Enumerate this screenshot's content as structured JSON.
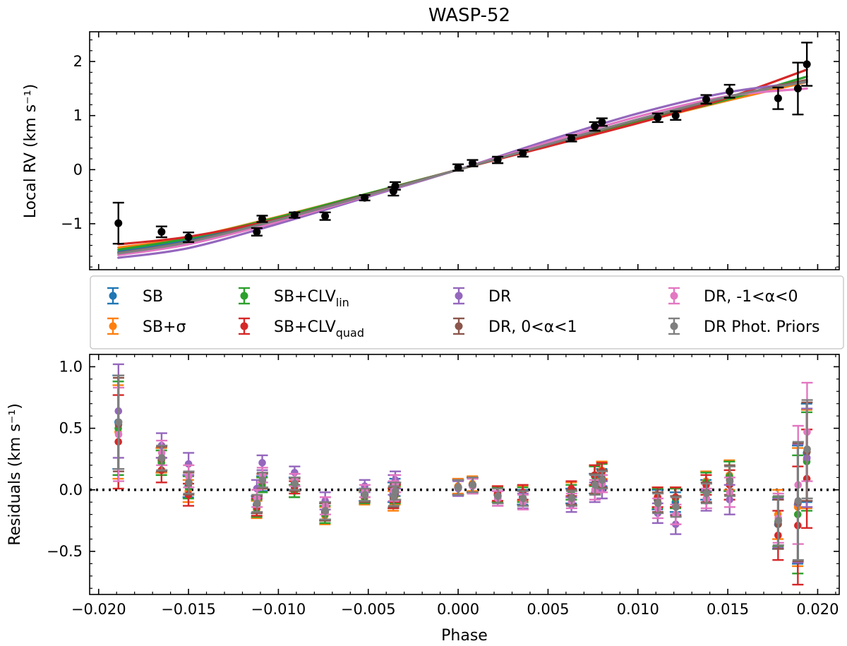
{
  "chart_data": [
    {
      "type": "line",
      "panel": "top",
      "title": "WASP-52",
      "ylabel": "Local RV (km s⁻¹)",
      "xlim": [
        -0.0205,
        0.0212
      ],
      "ylim": [
        -1.85,
        2.55
      ],
      "xticks": [
        -0.02,
        -0.015,
        -0.01,
        -0.005,
        0.0,
        0.005,
        0.01,
        0.015,
        0.02
      ],
      "yticks": [
        -1,
        0,
        1,
        2
      ],
      "ytick_labels": [
        "−1",
        "0",
        "1",
        "2"
      ],
      "observed": {
        "color": "#000000",
        "x": [
          -0.0189,
          -0.0165,
          -0.015,
          -0.0112,
          -0.0109,
          -0.0091,
          -0.0074,
          -0.0052,
          -0.0036,
          -0.0035,
          0.0,
          0.0008,
          0.0022,
          0.0036,
          0.0063,
          0.0076,
          0.008,
          0.0111,
          0.0121,
          0.0138,
          0.0151,
          0.0178,
          0.0189,
          0.0194
        ],
        "y": [
          -0.99,
          -1.15,
          -1.25,
          -1.15,
          -0.91,
          -0.84,
          -0.86,
          -0.52,
          -0.4,
          -0.3,
          0.04,
          0.12,
          0.18,
          0.3,
          0.58,
          0.8,
          0.88,
          0.96,
          1.0,
          1.3,
          1.45,
          1.32,
          1.5,
          1.95
        ],
        "yerr": [
          0.38,
          0.1,
          0.09,
          0.07,
          0.06,
          0.05,
          0.07,
          0.05,
          0.08,
          0.07,
          0.06,
          0.06,
          0.06,
          0.06,
          0.06,
          0.08,
          0.07,
          0.08,
          0.08,
          0.08,
          0.12,
          0.2,
          0.48,
          0.4
        ]
      },
      "series": [
        {
          "color": "#1f77b4",
          "x": [
            -0.0189,
            -0.015,
            -0.01,
            -0.005,
            0.0,
            0.005,
            0.01,
            0.015,
            0.0194
          ],
          "y": [
            -1.52,
            -1.3,
            -0.9,
            -0.45,
            0.0,
            0.45,
            0.9,
            1.32,
            1.65
          ]
        },
        {
          "color": "#ff7f0e",
          "x": [
            -0.0189,
            -0.015,
            -0.01,
            -0.005,
            0.0,
            0.005,
            0.01,
            0.015,
            0.0194
          ],
          "y": [
            -1.44,
            -1.26,
            -0.87,
            -0.44,
            0.0,
            0.44,
            0.87,
            1.28,
            1.62
          ]
        },
        {
          "color": "#2ca02c",
          "x": [
            -0.0189,
            -0.015,
            -0.01,
            -0.005,
            0.0,
            0.005,
            0.01,
            0.015,
            0.0194
          ],
          "y": [
            -1.48,
            -1.27,
            -0.88,
            -0.44,
            0.0,
            0.44,
            0.88,
            1.3,
            1.72
          ]
        },
        {
          "color": "#d62728",
          "x": [
            -0.0189,
            -0.015,
            -0.01,
            -0.005,
            0.0,
            0.005,
            0.01,
            0.015,
            0.0194
          ],
          "y": [
            -1.38,
            -1.24,
            -0.91,
            -0.46,
            0.0,
            0.43,
            0.86,
            1.33,
            1.85
          ]
        },
        {
          "color": "#9467bd",
          "x": [
            -0.0189,
            -0.015,
            -0.01,
            -0.005,
            0.0,
            0.005,
            0.01,
            0.015,
            0.0194
          ],
          "y": [
            -1.63,
            -1.45,
            -1.0,
            -0.5,
            0.0,
            0.54,
            1.04,
            1.43,
            1.62
          ]
        },
        {
          "color": "#8c564b",
          "x": [
            -0.0189,
            -0.015,
            -0.01,
            -0.005,
            0.0,
            0.005,
            0.01,
            0.015,
            0.0194
          ],
          "y": [
            -1.54,
            -1.33,
            -0.92,
            -0.46,
            0.0,
            0.46,
            0.92,
            1.34,
            1.66
          ]
        },
        {
          "color": "#e377c2",
          "x": [
            -0.0189,
            -0.015,
            -0.01,
            -0.005,
            0.0,
            0.005,
            0.01,
            0.015,
            0.0194
          ],
          "y": [
            -1.58,
            -1.38,
            -0.96,
            -0.48,
            0.0,
            0.5,
            0.98,
            1.36,
            1.5
          ]
        },
        {
          "color": "#7f7f7f",
          "x": [
            -0.0189,
            -0.015,
            -0.01,
            -0.005,
            0.0,
            0.005,
            0.01,
            0.015,
            0.0194
          ],
          "y": [
            -1.55,
            -1.34,
            -0.93,
            -0.47,
            0.0,
            0.47,
            0.93,
            1.35,
            1.63
          ]
        }
      ]
    },
    {
      "type": "scatter",
      "panel": "bottom",
      "xlabel": "Phase",
      "ylabel": "Residuals (km s⁻¹)",
      "xlim": [
        -0.0205,
        0.0212
      ],
      "ylim": [
        -0.85,
        1.1
      ],
      "xticks": [
        -0.02,
        -0.015,
        -0.01,
        -0.005,
        0.0,
        0.005,
        0.01,
        0.015,
        0.02
      ],
      "xtick_labels": [
        "−0.020",
        "−0.015",
        "−0.010",
        "−0.005",
        "0.000",
        "0.005",
        "0.010",
        "0.015",
        "0.020"
      ],
      "yticks": [
        -0.5,
        0.0,
        0.5,
        1.0
      ],
      "ytick_labels": [
        "−0.5",
        "0.0",
        "0.5",
        "1.0"
      ],
      "zero_line": 0.0,
      "x": [
        -0.0189,
        -0.0165,
        -0.015,
        -0.0112,
        -0.0109,
        -0.0091,
        -0.0074,
        -0.0052,
        -0.0036,
        -0.0035,
        0.0,
        0.0008,
        0.0022,
        0.0036,
        0.0063,
        0.0076,
        0.008,
        0.0111,
        0.0121,
        0.0138,
        0.0151,
        0.0178,
        0.0189,
        0.0194
      ],
      "yerr": [
        0.38,
        0.1,
        0.09,
        0.07,
        0.06,
        0.05,
        0.07,
        0.05,
        0.08,
        0.07,
        0.06,
        0.06,
        0.06,
        0.06,
        0.06,
        0.08,
        0.07,
        0.08,
        0.08,
        0.08,
        0.12,
        0.2,
        0.48,
        0.4
      ],
      "series": [
        {
          "name": "SB",
          "color": "#1f77b4",
          "y": [
            0.55,
            0.24,
            0.03,
            -0.12,
            0.05,
            0.05,
            -0.18,
            -0.04,
            -0.02,
            0.02,
            0.02,
            0.04,
            -0.04,
            -0.06,
            -0.05,
            0.05,
            0.1,
            -0.08,
            -0.1,
            0.0,
            0.11,
            -0.28,
            -0.12,
            0.3
          ]
        },
        {
          "name": "SB+σ",
          "color": "#ff7f0e",
          "y": [
            0.47,
            0.24,
            -0.01,
            -0.16,
            0.04,
            -0.01,
            -0.21,
            -0.07,
            -0.09,
            -0.05,
            0.03,
            0.05,
            -0.03,
            -0.03,
            0.0,
            0.12,
            0.16,
            -0.06,
            -0.06,
            0.07,
            0.12,
            -0.2,
            -0.14,
            0.25
          ]
        },
        {
          "name": "SB+CLV",
          "name_sub": "lin",
          "color": "#2ca02c",
          "y": [
            0.5,
            0.22,
            0.02,
            -0.15,
            0.04,
            -0.01,
            -0.2,
            -0.06,
            -0.07,
            -0.04,
            0.02,
            0.04,
            -0.04,
            -0.04,
            -0.02,
            0.11,
            0.14,
            -0.07,
            -0.07,
            0.06,
            0.11,
            -0.26,
            -0.2,
            0.23
          ]
        },
        {
          "name": "SB+CLV",
          "name_sub": "quad",
          "color": "#d62728",
          "y": [
            0.39,
            0.16,
            -0.04,
            -0.14,
            0.07,
            0.02,
            -0.17,
            -0.05,
            -0.07,
            -0.03,
            0.02,
            0.04,
            -0.03,
            -0.02,
            0.01,
            0.12,
            0.15,
            -0.06,
            -0.06,
            0.04,
            0.04,
            -0.37,
            -0.29,
            0.09
          ]
        },
        {
          "name": "DR",
          "color": "#9467bd",
          "y": [
            0.64,
            0.36,
            0.21,
            0.01,
            0.22,
            0.14,
            -0.09,
            0.03,
            0.04,
            0.08,
            0.01,
            0.03,
            -0.07,
            -0.09,
            -0.12,
            -0.02,
            0.0,
            -0.19,
            -0.28,
            -0.09,
            -0.08,
            -0.27,
            -0.11,
            0.26
          ]
        },
        {
          "name": "DR, 0<α<1",
          "color": "#8c564b",
          "y": [
            0.53,
            0.25,
            0.05,
            -0.12,
            0.07,
            0.04,
            -0.18,
            -0.05,
            -0.06,
            -0.02,
            0.02,
            0.04,
            -0.05,
            -0.07,
            -0.06,
            0.05,
            0.09,
            -0.1,
            -0.13,
            -0.02,
            0.08,
            -0.28,
            -0.1,
            0.31
          ]
        },
        {
          "name": "DR, -1<α<0",
          "color": "#e377c2",
          "y": [
            0.45,
            0.3,
            0.11,
            -0.07,
            0.12,
            0.08,
            -0.13,
            -0.01,
            -0.01,
            0.05,
            0.02,
            0.03,
            -0.07,
            -0.1,
            -0.09,
            0.0,
            0.05,
            -0.15,
            -0.2,
            -0.07,
            -0.02,
            -0.23,
            0.04,
            0.47
          ]
        },
        {
          "name": "DR Phot. Priors",
          "color": "#7f7f7f",
          "y": [
            0.55,
            0.26,
            0.06,
            -0.11,
            0.08,
            0.05,
            -0.17,
            -0.04,
            -0.05,
            -0.01,
            0.02,
            0.04,
            -0.05,
            -0.07,
            -0.07,
            0.04,
            0.08,
            -0.11,
            -0.14,
            -0.03,
            0.07,
            -0.25,
            -0.09,
            0.33
          ]
        }
      ]
    }
  ]
}
